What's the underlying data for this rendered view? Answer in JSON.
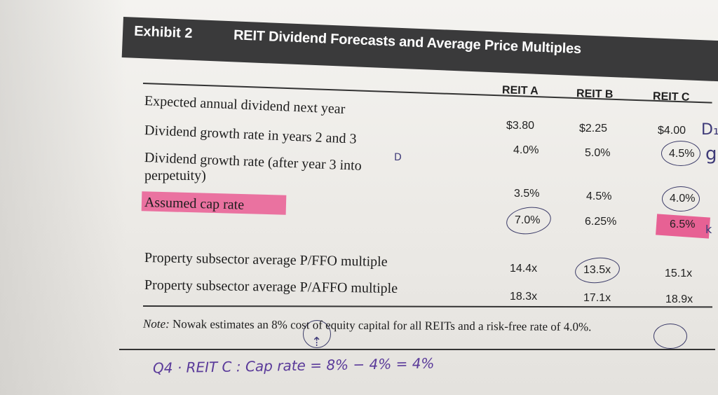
{
  "exhibit": {
    "label": "Exhibit 2",
    "title": "REIT Dividend Forecasts and Average Price Multiples"
  },
  "columns": [
    "REIT A",
    "REIT B",
    "REIT C"
  ],
  "rows": [
    {
      "label": "Expected annual dividend next year",
      "values": [
        "$3.80",
        "$2.25",
        "$4.00"
      ]
    },
    {
      "label": "Dividend growth rate in years 2 and 3",
      "values": [
        "4.0%",
        "5.0%",
        "4.5%"
      ]
    },
    {
      "label_line1": "Dividend growth rate (after year 3 into",
      "label_line2": "perpetuity)",
      "values": [
        "3.5%",
        "4.5%",
        "4.0%"
      ]
    },
    {
      "label": "Assumed cap rate",
      "values": [
        "7.0%",
        "6.25%",
        "6.5%"
      ]
    },
    {
      "label": "Property subsector average P/FFO multiple",
      "values": [
        "14.4x",
        "13.5x",
        "15.1x"
      ]
    },
    {
      "label": "Property subsector average P/AFFO multiple",
      "values": [
        "18.3x",
        "17.1x",
        "18.9x"
      ]
    }
  ],
  "note": {
    "prefix": "Note:",
    "text": " Nowak estimates an 8% cost of equity capital for all REITs and a risk-free rate of 4.0%."
  },
  "handwriting": {
    "bottom": "Q4 · REIT C :   Cap rate = 8% − 4% = 4%",
    "mark_d1": "D₁",
    "mark_g": "g",
    "mark_d": "D",
    "mark_arrow": "⇡",
    "mark_k": "k"
  },
  "colors": {
    "header_bg": "#3a3a3b",
    "highlight": "#e9679a",
    "ink": "#3e3a78"
  }
}
